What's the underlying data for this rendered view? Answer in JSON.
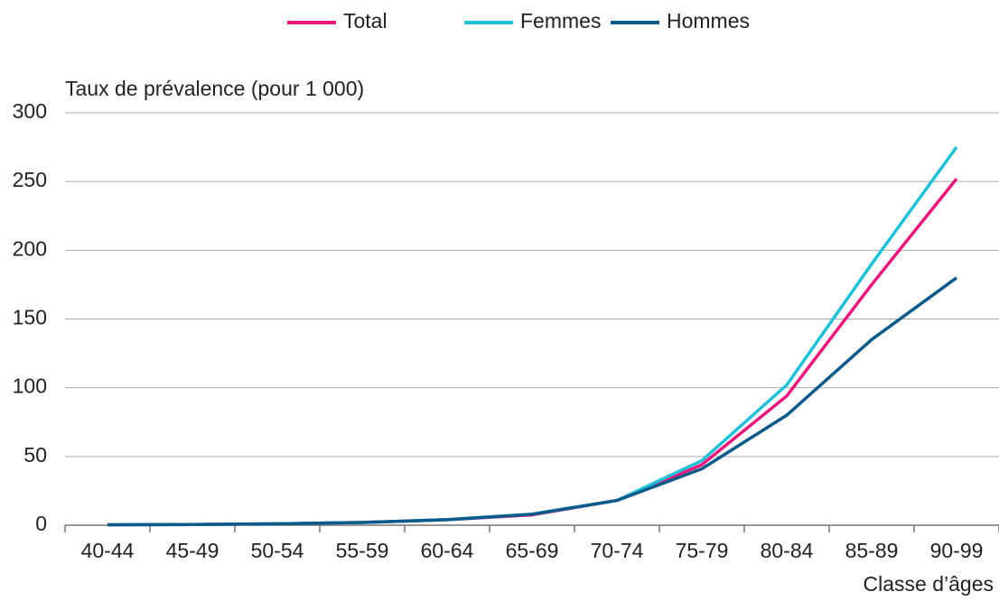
{
  "chart_data": {
    "type": "line",
    "y_label": "Taux de prévalence (pour 1 000)",
    "x_label": "Classe d’âges",
    "categories": [
      "40-44",
      "45-49",
      "50-54",
      "55-59",
      "60-64",
      "65-69",
      "70-74",
      "75-79",
      "80-84",
      "85-89",
      "90-99"
    ],
    "series": [
      {
        "name": "Total",
        "color": "#e8187c",
        "values": [
          0.3,
          0.5,
          1,
          2,
          4,
          7.5,
          18,
          44,
          94,
          175,
          252
        ]
      },
      {
        "name": "Femmes",
        "color": "#22c0d8",
        "values": [
          0.3,
          0.5,
          1,
          2,
          4,
          8,
          18,
          47,
          102,
          190,
          275
        ]
      },
      {
        "name": "Hommes",
        "color": "#0b5a8c",
        "values": [
          0.3,
          0.5,
          1,
          2,
          4,
          8,
          18,
          41,
          80,
          135,
          180
        ]
      }
    ],
    "ylim": [
      0,
      300
    ],
    "yticks": [
      0,
      50,
      100,
      150,
      200,
      250,
      300
    ],
    "grid": true,
    "legend": "top"
  }
}
